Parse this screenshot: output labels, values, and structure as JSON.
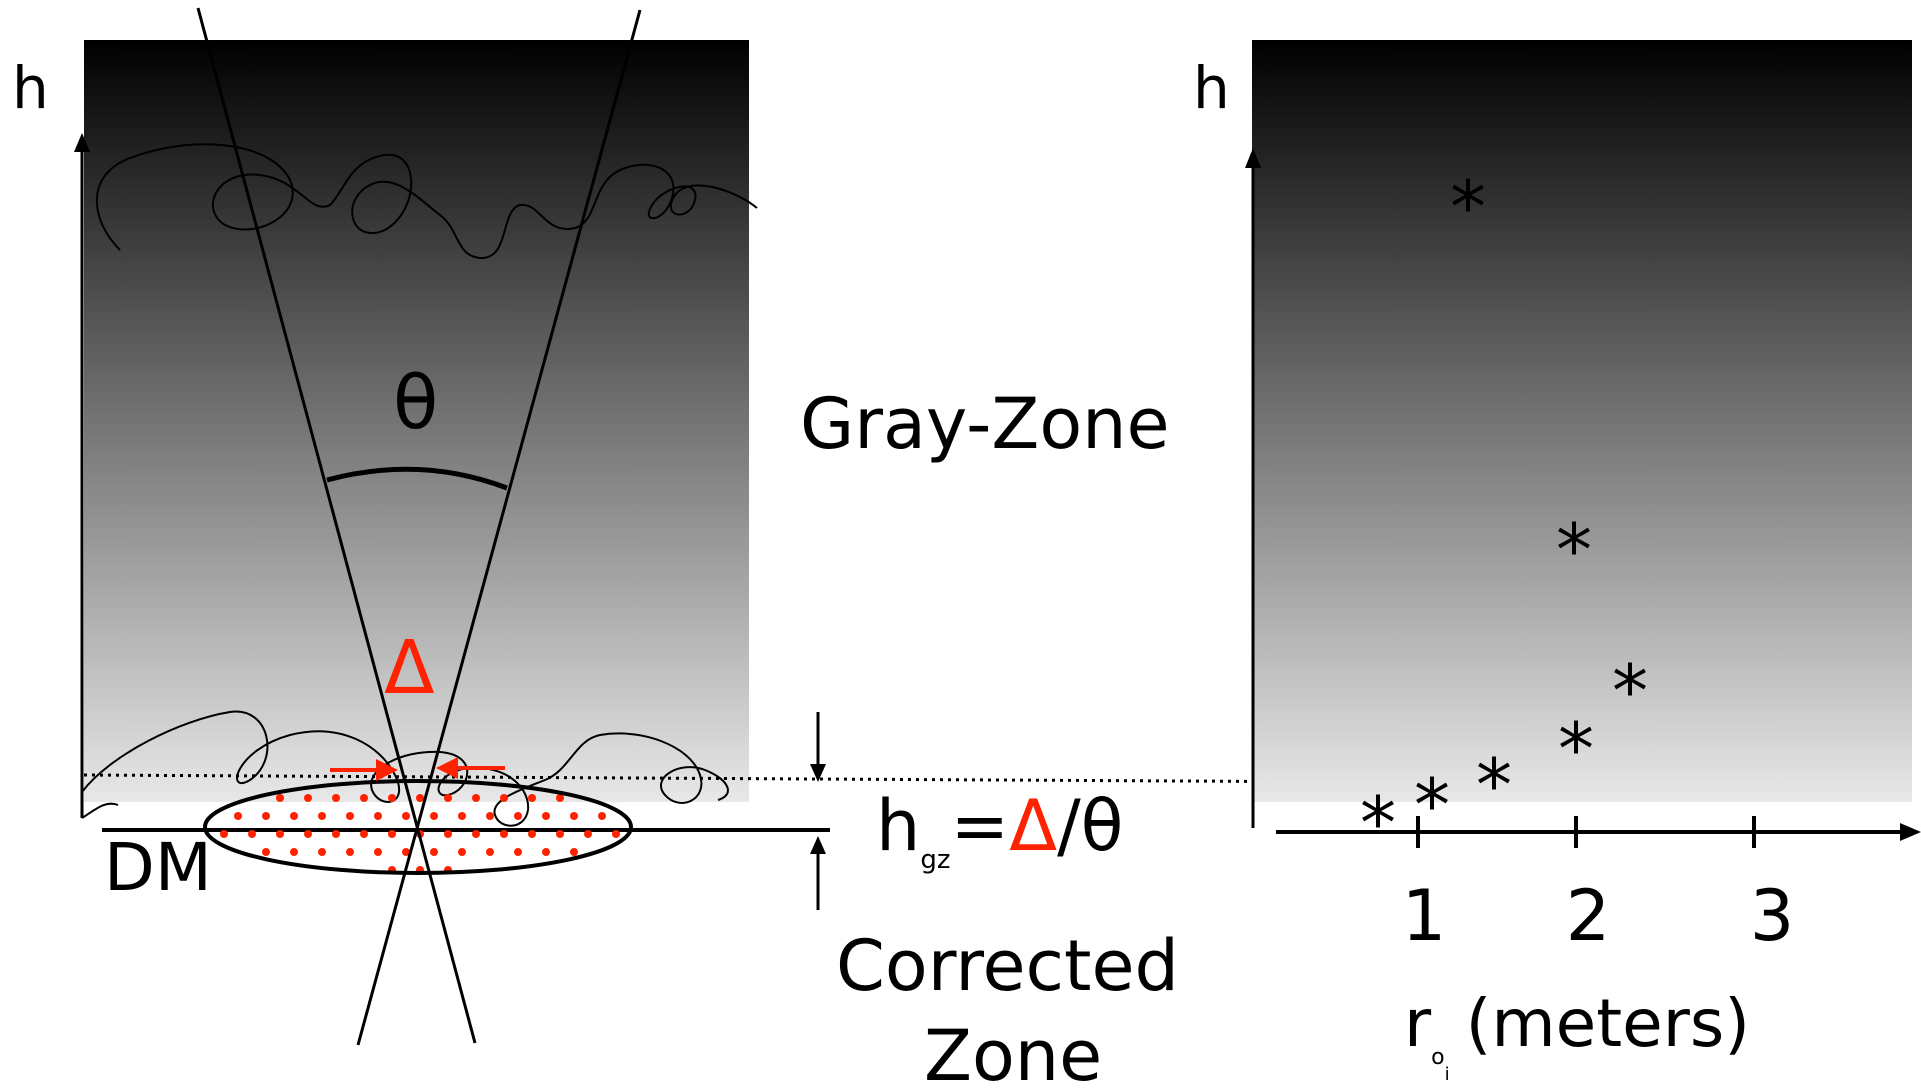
{
  "left_panel": {
    "axis_label": "h",
    "angle_symbol": "θ",
    "delta_symbol": "Δ",
    "dm_label": "DM"
  },
  "middle": {
    "gray_zone_label": "Gray-Zone",
    "formula": {
      "h": "h",
      "subscript": "gz",
      "equals": "=",
      "delta": "Δ",
      "over_theta": "/θ"
    },
    "corrected_zone_line1": "Corrected",
    "corrected_zone_line2": "Zone"
  },
  "right_panel": {
    "axis_label": "h",
    "x_ticks": [
      "1",
      "2",
      "3"
    ],
    "x_label_r": "r",
    "x_label_sub1": "o",
    "x_label_sub2": "i",
    "x_label_units": "(meters)",
    "marker_symbol": "*"
  },
  "colors": {
    "accent_red": "#ff2200",
    "gradient_top": "#000000",
    "gradient_bottom": "#e8e8e8"
  }
}
